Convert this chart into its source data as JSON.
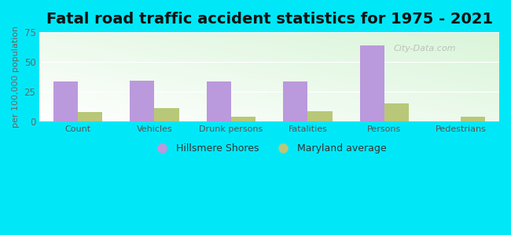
{
  "title": "Fatal road traffic accident statistics for 1975 - 2021",
  "ylabel": "per 100,000 population",
  "categories": [
    "Count",
    "Vehicles",
    "Drunk persons",
    "Fatalities",
    "Persons",
    "Pedestrians"
  ],
  "hillsmere_values": [
    33.5,
    34.0,
    33.5,
    33.5,
    64.0,
    0.0
  ],
  "maryland_values": [
    8.0,
    11.5,
    4.0,
    8.5,
    15.0,
    4.0
  ],
  "hillsmere_color": "#bb99dd",
  "maryland_color": "#b8c878",
  "ylim": [
    0,
    75
  ],
  "yticks": [
    0,
    25,
    50,
    75
  ],
  "outer_background": "#00e8f8",
  "title_fontsize": 14,
  "legend_label_hillsmere": "Hillsmere Shores",
  "legend_label_maryland": "Maryland average",
  "bar_width": 0.32,
  "watermark": "City-Data.com"
}
